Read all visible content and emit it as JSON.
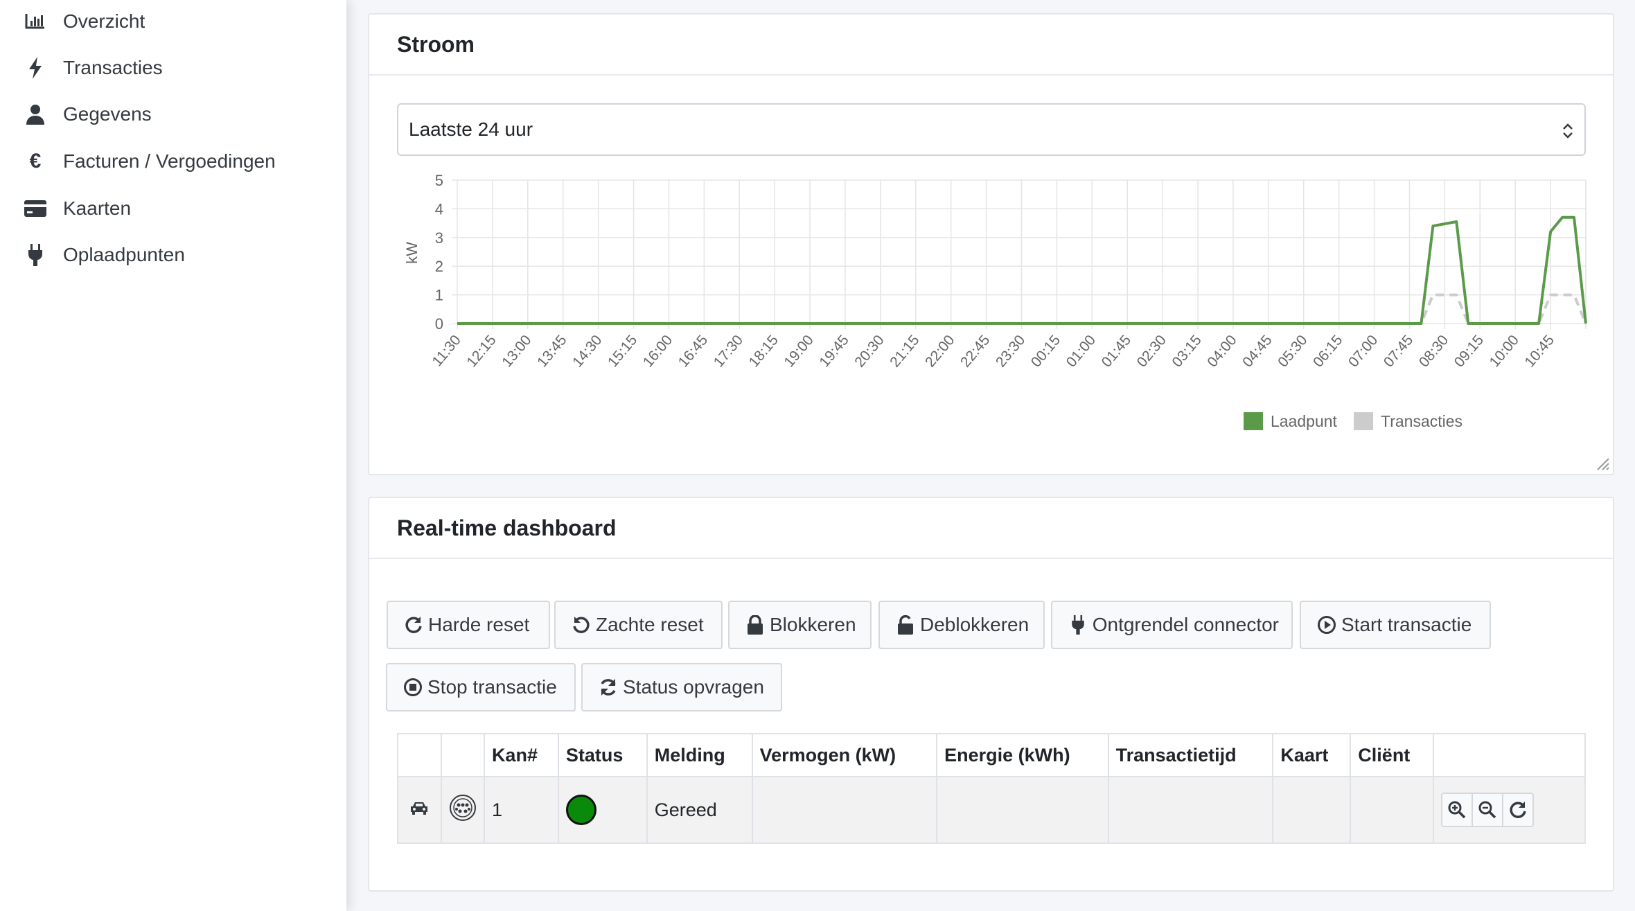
{
  "sidebar": {
    "items": [
      {
        "label": "Overzicht",
        "icon": "bar-chart-icon"
      },
      {
        "label": "Transacties",
        "icon": "bolt-icon"
      },
      {
        "label": "Gegevens",
        "icon": "user-icon"
      },
      {
        "label": "Facturen / Vergoedingen",
        "icon": "euro-icon"
      },
      {
        "label": "Kaarten",
        "icon": "credit-card-icon"
      },
      {
        "label": "Oplaadpunten",
        "icon": "plug-icon"
      }
    ]
  },
  "stroom": {
    "title": "Stroom",
    "period_select": {
      "value": "Laatste 24 uur"
    }
  },
  "chart_data": {
    "type": "line",
    "ylabel": "kW",
    "xlabel": "",
    "ylim": [
      0,
      5
    ],
    "yticks": [
      0,
      1,
      2,
      3,
      4,
      5
    ],
    "x_tick_labels": [
      "11:30",
      "12:15",
      "13:00",
      "13:45",
      "14:30",
      "15:15",
      "16:00",
      "16:45",
      "17:30",
      "18:15",
      "19:00",
      "19:45",
      "20:30",
      "21:15",
      "22:00",
      "22:45",
      "23:30",
      "00:15",
      "01:00",
      "01:45",
      "02:30",
      "03:15",
      "04:00",
      "04:45",
      "05:30",
      "06:15",
      "07:00",
      "07:45",
      "08:30",
      "09:15",
      "10:00",
      "10:45"
    ],
    "x_range": [
      "11:30",
      "11:30"
    ],
    "grid": true,
    "legend": "bottom",
    "series": [
      {
        "name": "Laadpunt",
        "color": "#5a9a48",
        "style": "solid",
        "points": [
          [
            "11:30",
            0
          ],
          [
            "08:00",
            0
          ],
          [
            "08:15",
            3.4
          ],
          [
            "08:45",
            3.55
          ],
          [
            "09:00",
            0
          ],
          [
            "10:30",
            0
          ],
          [
            "10:45",
            3.2
          ],
          [
            "11:00",
            3.7
          ],
          [
            "11:15",
            3.7
          ],
          [
            "11:30",
            0
          ]
        ]
      },
      {
        "name": "Transacties",
        "color": "#cccccc",
        "style": "dashed",
        "points": [
          [
            "11:30",
            0
          ],
          [
            "08:00",
            0
          ],
          [
            "08:15",
            1
          ],
          [
            "08:45",
            1
          ],
          [
            "09:00",
            0
          ],
          [
            "10:30",
            0
          ],
          [
            "10:45",
            1
          ],
          [
            "11:15",
            1
          ],
          [
            "11:30",
            0
          ]
        ]
      }
    ]
  },
  "dashboard": {
    "title": "Real-time dashboard",
    "buttons": {
      "hard_reset": "Harde reset",
      "soft_reset": "Zachte reset",
      "block": "Blokkeren",
      "unblock": "Deblokkeren",
      "unlock_connector": "Ontgrendel connector",
      "start_transaction": "Start transactie",
      "stop_transaction": "Stop transactie",
      "request_status": "Status opvragen"
    },
    "table": {
      "headers": [
        "",
        "",
        "Kan#",
        "Status",
        "Melding",
        "Vermogen (kW)",
        "Energie (kWh)",
        "Transactietijd",
        "Kaart",
        "Cliënt",
        ""
      ],
      "rows": [
        {
          "channel": "1",
          "status_color": "#0a8a0a",
          "message": "Gereed",
          "power": "",
          "energy": "",
          "duration": "",
          "card": "",
          "client": ""
        }
      ]
    }
  }
}
